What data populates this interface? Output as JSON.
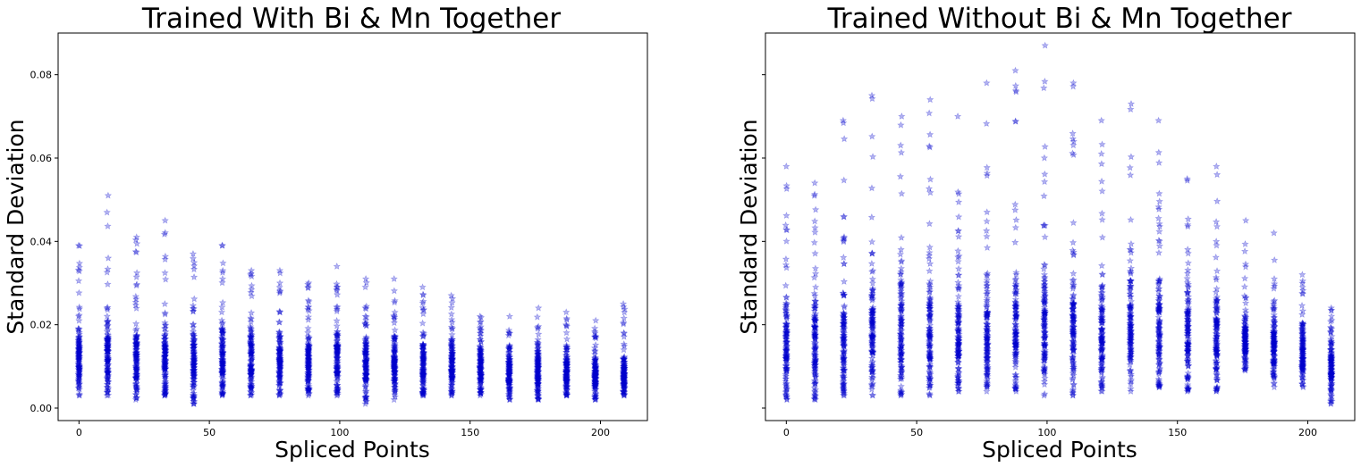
{
  "chart_data": [
    {
      "type": "scatter",
      "title": "Trained With Bi & Mn Together",
      "xlabel": "Spliced Points",
      "ylabel": "Standard Deviation",
      "xlim": [
        -8,
        218
      ],
      "ylim": [
        -0.003,
        0.09
      ],
      "xticks": [
        0,
        50,
        100,
        150,
        200
      ],
      "yticks": [
        0.0,
        0.02,
        0.04,
        0.06,
        0.08
      ],
      "ytick_labels": [
        "0.00",
        "0.02",
        "0.04",
        "0.06",
        "0.08"
      ],
      "grid": false,
      "marker": "star",
      "color": "#0000cc",
      "x": [
        0,
        11,
        22,
        33,
        44,
        55,
        66,
        77,
        88,
        99,
        110,
        121,
        132,
        143,
        154,
        165,
        176,
        187,
        198,
        209
      ],
      "y_min": [
        0.003,
        0.003,
        0.002,
        0.003,
        0.001,
        0.003,
        0.003,
        0.003,
        0.003,
        0.003,
        0.001,
        0.002,
        0.003,
        0.003,
        0.003,
        0.002,
        0.002,
        0.003,
        0.002,
        0.003
      ],
      "y_dense_max": [
        0.019,
        0.02,
        0.019,
        0.019,
        0.019,
        0.019,
        0.019,
        0.018,
        0.017,
        0.018,
        0.017,
        0.017,
        0.016,
        0.016,
        0.015,
        0.014,
        0.014,
        0.014,
        0.012,
        0.012
      ],
      "y_max": [
        0.039,
        0.051,
        0.041,
        0.045,
        0.037,
        0.039,
        0.033,
        0.033,
        0.03,
        0.034,
        0.031,
        0.031,
        0.029,
        0.027,
        0.022,
        0.022,
        0.024,
        0.023,
        0.021,
        0.025
      ]
    },
    {
      "type": "scatter",
      "title": "Trained Without Bi & Mn Together",
      "xlabel": "Spliced Points",
      "ylabel": "Standard Deviation",
      "xlim": [
        -8,
        218
      ],
      "ylim": [
        -0.003,
        0.09
      ],
      "xticks": [
        0,
        50,
        100,
        150,
        200
      ],
      "yticks": [
        0.0,
        0.02,
        0.04,
        0.06,
        0.08
      ],
      "ytick_labels": [],
      "grid": false,
      "marker": "star",
      "color": "#0000cc",
      "x": [
        0,
        11,
        22,
        33,
        44,
        55,
        66,
        77,
        88,
        99,
        110,
        121,
        132,
        143,
        154,
        165,
        176,
        187,
        198,
        209
      ],
      "y_min": [
        0.002,
        0.002,
        0.003,
        0.003,
        0.003,
        0.003,
        0.004,
        0.004,
        0.004,
        0.003,
        0.003,
        0.004,
        0.004,
        0.005,
        0.004,
        0.004,
        0.009,
        0.005,
        0.005,
        0.001
      ],
      "y_dense_max": [
        0.025,
        0.026,
        0.028,
        0.029,
        0.031,
        0.031,
        0.031,
        0.03,
        0.03,
        0.032,
        0.031,
        0.029,
        0.031,
        0.031,
        0.028,
        0.026,
        0.022,
        0.022,
        0.02,
        0.016
      ],
      "y_max": [
        0.058,
        0.054,
        0.069,
        0.075,
        0.07,
        0.074,
        0.07,
        0.078,
        0.081,
        0.087,
        0.078,
        0.069,
        0.073,
        0.069,
        0.055,
        0.058,
        0.045,
        0.042,
        0.032,
        0.024
      ]
    }
  ]
}
